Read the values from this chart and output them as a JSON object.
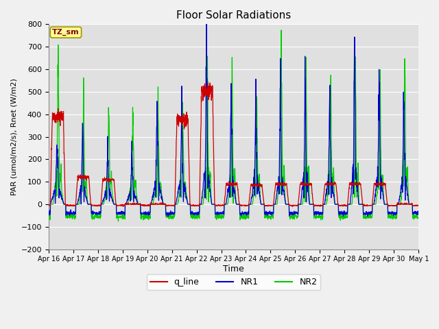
{
  "title": "Floor Solar Radiations",
  "xlabel": "Time",
  "ylabel": "PAR (umol/m2/s), Rnet (W/m2)",
  "ylim": [
    -200,
    800
  ],
  "yticks": [
    -200,
    -100,
    0,
    100,
    200,
    300,
    400,
    500,
    600,
    700,
    800
  ],
  "fig_bg_color": "#f0f0f0",
  "plot_bg_color": "#e0e0e0",
  "grid_color": "#ffffff",
  "line_colors": {
    "q_line": "#cc0000",
    "NR1": "#0000cc",
    "NR2": "#00cc00"
  },
  "line_widths": {
    "q_line": 0.9,
    "NR1": 0.9,
    "NR2": 0.9
  },
  "annotation_text": "TZ_sm",
  "annotation_color": "#8b0000",
  "annotation_bg": "#ffff99",
  "annotation_border": "#999900",
  "xtick_labels": [
    "Apr 16",
    "Apr 17",
    "Apr 18",
    "Apr 19",
    "Apr 20",
    "Apr 21",
    "Apr 22",
    "Apr 23",
    "Apr 24",
    "Apr 25",
    "Apr 26",
    "Apr 27",
    "Apr 28",
    "Apr 29",
    "Apr 30",
    "May 1"
  ],
  "n_days": 15,
  "pts_per_day": 144,
  "night_q": -5,
  "night_nr1": -40,
  "night_nr2": -55,
  "day_peaks_q": [
    390,
    120,
    110,
    0,
    0,
    375,
    500,
    90,
    85,
    90,
    90,
    90,
    90,
    90,
    0
  ],
  "day_peaks_nr1": [
    300,
    370,
    250,
    250,
    425,
    425,
    700,
    490,
    490,
    530,
    700,
    540,
    740,
    600,
    530
  ],
  "day_peaks_nr2": [
    660,
    505,
    480,
    430,
    445,
    440,
    670,
    650,
    520,
    680,
    705,
    620,
    735,
    605,
    660
  ],
  "spike_widths_nr1": [
    0.08,
    0.06,
    0.07,
    0.07,
    0.07,
    0.07,
    0.06,
    0.06,
    0.06,
    0.06,
    0.05,
    0.06,
    0.05,
    0.06,
    0.06
  ],
  "spike_widths_nr2": [
    0.06,
    0.05,
    0.06,
    0.06,
    0.06,
    0.06,
    0.05,
    0.05,
    0.05,
    0.05,
    0.04,
    0.05,
    0.04,
    0.05,
    0.05
  ],
  "spike_centers": [
    0.35,
    0.38,
    0.4,
    0.38,
    0.4,
    0.4,
    0.4,
    0.4,
    0.4,
    0.4,
    0.4,
    0.4,
    0.4,
    0.4,
    0.4
  ]
}
